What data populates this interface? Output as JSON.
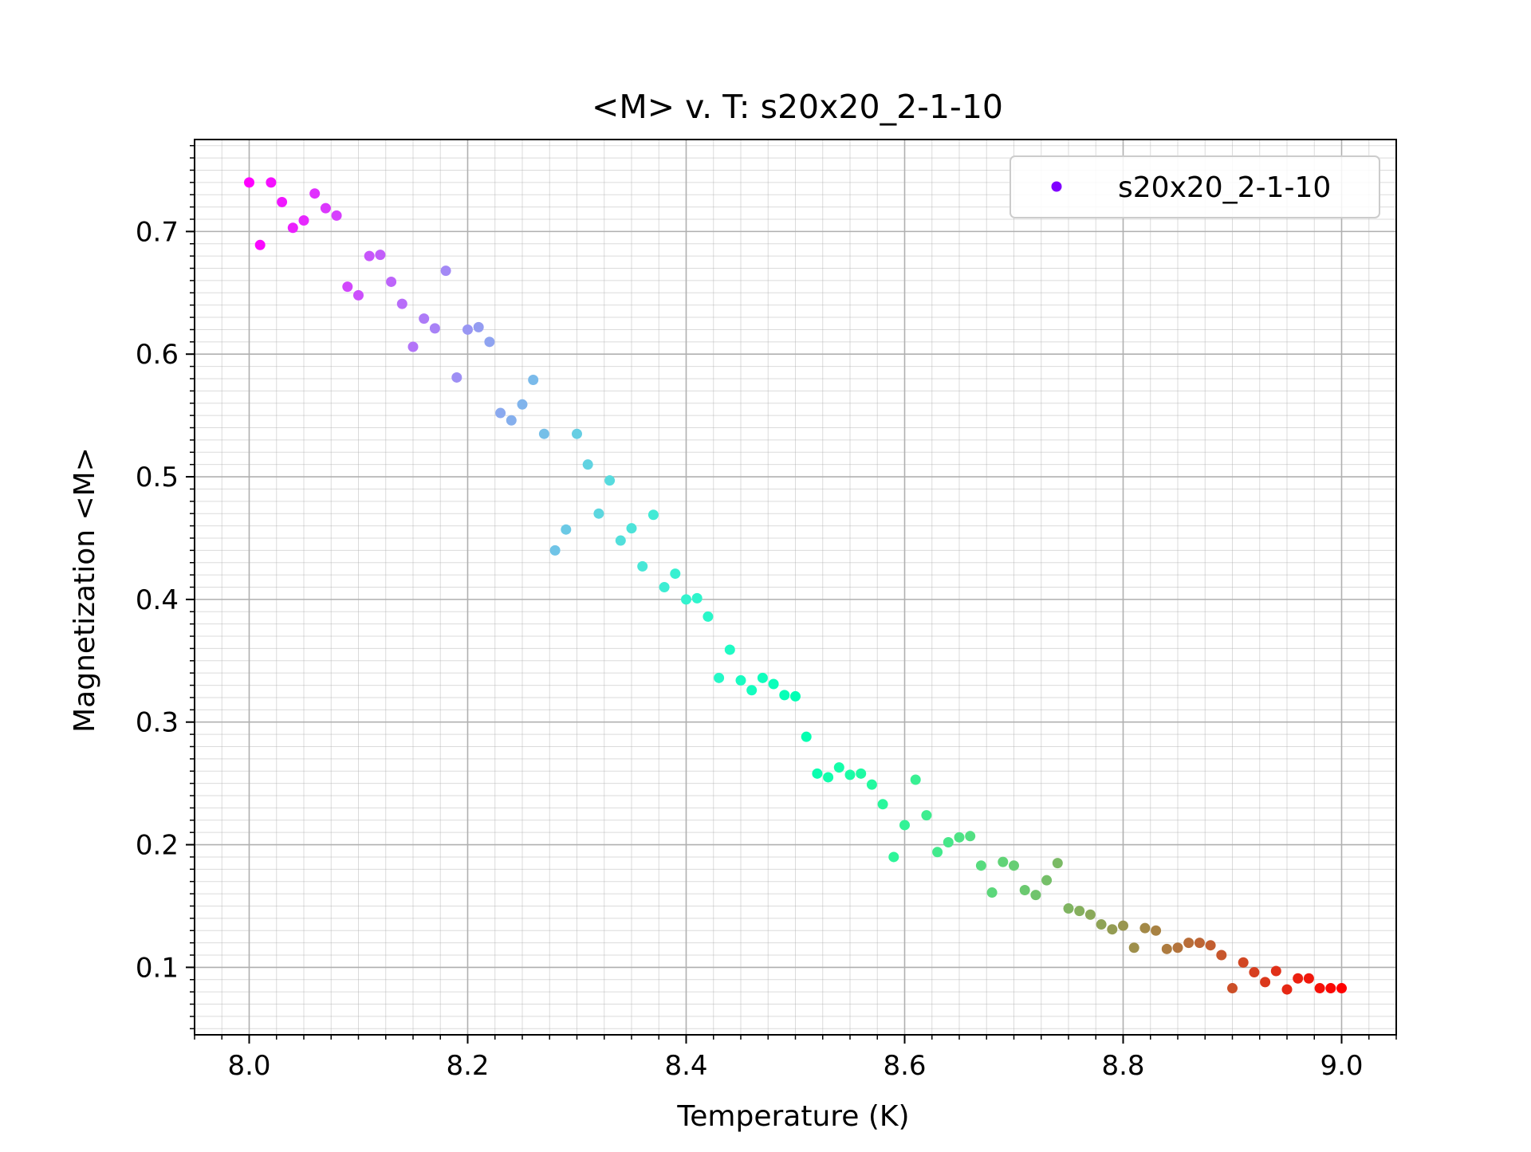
{
  "chart_data": {
    "type": "scatter",
    "title": "<M> v. T: s20x20_2-1-10",
    "xlabel": "Temperature (K)",
    "ylabel": "Magnetization <M>",
    "xlim": [
      7.95,
      9.05
    ],
    "ylim": [
      0.045,
      0.775
    ],
    "x_ticks": [
      8.0,
      8.2,
      8.4,
      8.6,
      8.8,
      9.0
    ],
    "x_tick_labels": [
      "8.0",
      "8.2",
      "8.4",
      "8.6",
      "8.8",
      "9.0"
    ],
    "y_ticks": [
      0.1,
      0.2,
      0.3,
      0.4,
      0.5,
      0.6,
      0.7
    ],
    "y_tick_labels": [
      "0.1",
      "0.2",
      "0.3",
      "0.4",
      "0.5",
      "0.6",
      "0.7"
    ],
    "grid": "major and minor",
    "legend_position": "upper right",
    "colormap": "rainbow",
    "series": [
      {
        "name": "s20x20_2-1-10",
        "legend_color": "#8000ff",
        "x": [
          8.0,
          8.01,
          8.02,
          8.03,
          8.04,
          8.05,
          8.06,
          8.07,
          8.08,
          8.09,
          8.1,
          8.11,
          8.12,
          8.13,
          8.14,
          8.15,
          8.16,
          8.17,
          8.18,
          8.19,
          8.2,
          8.21,
          8.22,
          8.23,
          8.24,
          8.25,
          8.26,
          8.27,
          8.28,
          8.29,
          8.3,
          8.31,
          8.32,
          8.33,
          8.34,
          8.35,
          8.36,
          8.37,
          8.38,
          8.39,
          8.4,
          8.41,
          8.42,
          8.43,
          8.44,
          8.45,
          8.46,
          8.47,
          8.48,
          8.49,
          8.5,
          8.51,
          8.52,
          8.53,
          8.54,
          8.55,
          8.56,
          8.57,
          8.58,
          8.59,
          8.6,
          8.61,
          8.62,
          8.63,
          8.64,
          8.65,
          8.66,
          8.67,
          8.68,
          8.69,
          8.7,
          8.71,
          8.72,
          8.73,
          8.74,
          8.75,
          8.76,
          8.77,
          8.78,
          8.79,
          8.8,
          8.81,
          8.82,
          8.83,
          8.84,
          8.85,
          8.86,
          8.87,
          8.88,
          8.89,
          8.9,
          8.91,
          8.92,
          8.93,
          8.94,
          8.95,
          8.96,
          8.97,
          8.98,
          8.99,
          9.0
        ],
        "y": [
          0.74,
          0.689,
          0.74,
          0.724,
          0.703,
          0.709,
          0.731,
          0.719,
          0.713,
          0.655,
          0.648,
          0.68,
          0.681,
          0.659,
          0.641,
          0.606,
          0.629,
          0.621,
          0.668,
          0.581,
          0.62,
          0.622,
          0.61,
          0.552,
          0.546,
          0.559,
          0.579,
          0.535,
          0.44,
          0.457,
          0.535,
          0.51,
          0.47,
          0.497,
          0.448,
          0.458,
          0.427,
          0.469,
          0.41,
          0.421,
          0.4,
          0.401,
          0.386,
          0.336,
          0.359,
          0.334,
          0.326,
          0.336,
          0.331,
          0.322,
          0.321,
          0.288,
          0.258,
          0.255,
          0.263,
          0.257,
          0.258,
          0.249,
          0.233,
          0.19,
          0.216,
          0.253,
          0.224,
          0.194,
          0.202,
          0.206,
          0.207,
          0.183,
          0.161,
          0.186,
          0.183,
          0.163,
          0.159,
          0.171,
          0.185,
          0.148,
          0.146,
          0.143,
          0.135,
          0.131,
          0.134,
          0.116,
          0.132,
          0.13,
          0.115,
          0.116,
          0.12,
          0.12,
          0.118,
          0.11,
          0.083,
          0.104,
          0.096,
          0.088,
          0.097,
          0.082,
          0.091,
          0.091,
          0.083,
          0.083,
          0.083
        ]
      }
    ]
  }
}
